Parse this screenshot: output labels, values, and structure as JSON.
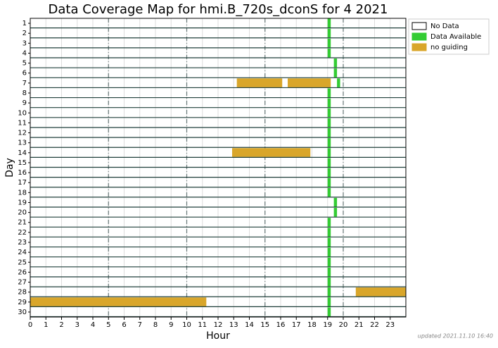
{
  "chart_data": {
    "type": "timeline",
    "title": "Data Coverage Map for hmi.B_720s_dconS for 4 2021",
    "xlabel": "Hour",
    "ylabel": "Day",
    "note": "updated 2021.11.10 16:40",
    "categories": [
      "1",
      "2",
      "3",
      "4",
      "5",
      "6",
      "7",
      "8",
      "9",
      "10",
      "11",
      "12",
      "13",
      "14",
      "15",
      "16",
      "17",
      "18",
      "19",
      "20",
      "21",
      "22",
      "23",
      "24",
      "25",
      "26",
      "27",
      "28",
      "29",
      "30"
    ],
    "xlim": [
      0,
      24
    ],
    "xticks": [
      0,
      1,
      2,
      3,
      4,
      5,
      6,
      7,
      8,
      9,
      10,
      11,
      12,
      13,
      14,
      15,
      16,
      17,
      18,
      19,
      20,
      21,
      22,
      23
    ],
    "xmajor": [
      5,
      10,
      15,
      20
    ],
    "grid": true,
    "series": [
      {
        "name": "No Data",
        "color": "#ffffff"
      },
      {
        "name": "Data Available",
        "color": "#33cc33",
        "values": [
          [
            [
              19.0,
              19.2
            ]
          ],
          [
            [
              19.0,
              19.2
            ]
          ],
          [
            [
              19.0,
              19.2
            ]
          ],
          [
            [
              19.0,
              19.2
            ]
          ],
          [
            [
              19.4,
              19.6
            ]
          ],
          [
            [
              19.4,
              19.6
            ]
          ],
          [
            [
              19.6,
              19.8
            ]
          ],
          [
            [
              19.0,
              19.2
            ]
          ],
          [
            [
              19.0,
              19.2
            ]
          ],
          [
            [
              19.0,
              19.2
            ]
          ],
          [
            [
              19.0,
              19.2
            ]
          ],
          [
            [
              19.0,
              19.2
            ]
          ],
          [
            [
              19.0,
              19.2
            ]
          ],
          [
            [
              19.0,
              19.2
            ]
          ],
          [
            [
              19.0,
              19.2
            ]
          ],
          [
            [
              19.0,
              19.2
            ]
          ],
          [
            [
              19.0,
              19.2
            ]
          ],
          [
            [
              19.0,
              19.2
            ]
          ],
          [
            [
              19.4,
              19.6
            ]
          ],
          [
            [
              19.4,
              19.6
            ]
          ],
          [
            [
              19.0,
              19.2
            ]
          ],
          [
            [
              19.0,
              19.2
            ]
          ],
          [
            [
              19.0,
              19.2
            ]
          ],
          [
            [
              19.0,
              19.2
            ]
          ],
          [
            [
              19.0,
              19.2
            ]
          ],
          [
            [
              19.0,
              19.2
            ]
          ],
          [
            [
              19.0,
              19.2
            ]
          ],
          [
            [
              19.0,
              19.2
            ]
          ],
          [
            [
              19.0,
              19.2
            ]
          ],
          [
            [
              19.0,
              19.2
            ]
          ]
        ]
      },
      {
        "name": "no guiding",
        "color": "#d9a62a",
        "values": [
          null,
          null,
          null,
          null,
          null,
          null,
          [
            [
              13.2,
              16.1
            ],
            [
              16.45,
              19.2
            ]
          ],
          null,
          null,
          null,
          null,
          null,
          null,
          [
            [
              12.9,
              17.9
            ]
          ],
          null,
          null,
          null,
          null,
          null,
          null,
          null,
          null,
          null,
          null,
          null,
          null,
          null,
          [
            [
              20.8,
              24
            ]
          ],
          [
            [
              0,
              11.25
            ]
          ],
          null
        ]
      }
    ]
  }
}
